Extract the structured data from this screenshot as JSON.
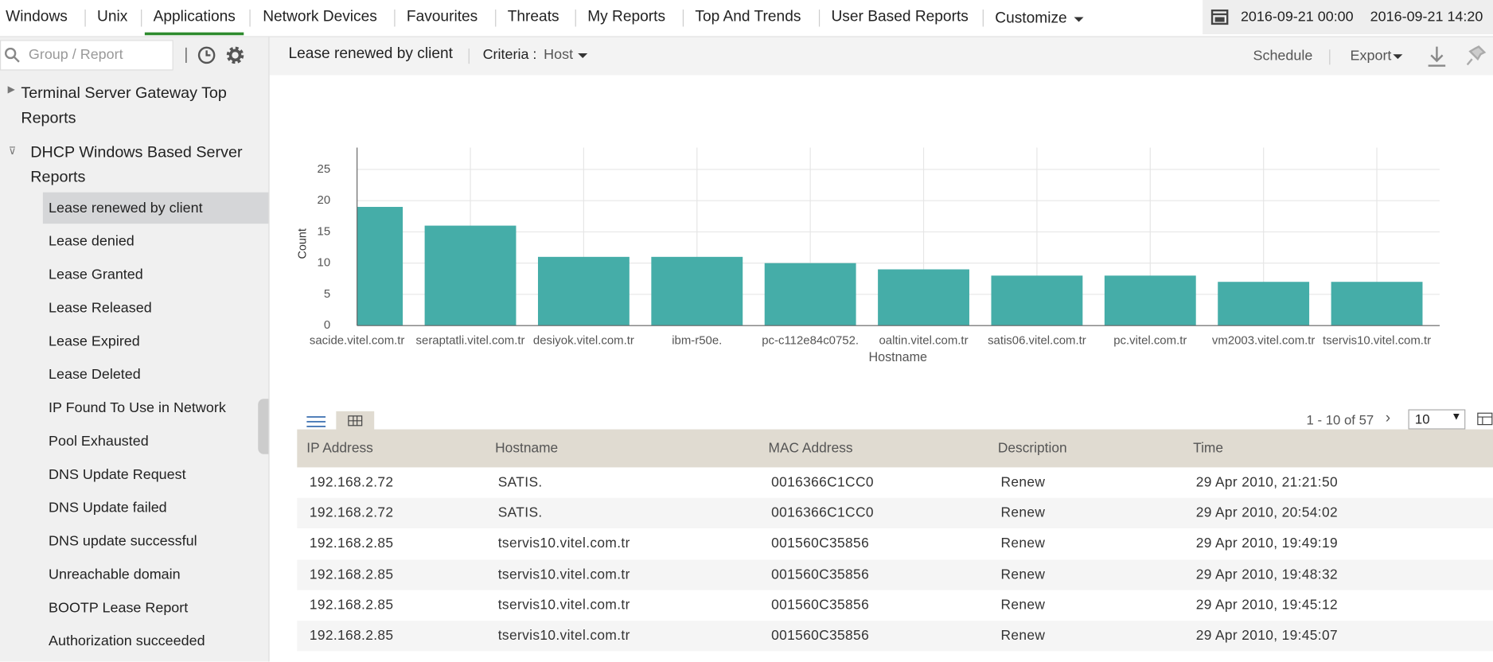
{
  "nav": {
    "items": [
      "Windows",
      "Unix",
      "Applications",
      "Network Devices",
      "Favourites",
      "Threats",
      "My Reports",
      "Top And Trends",
      "User Based Reports",
      "Customize"
    ],
    "active": 2,
    "date_from": "2016-09-21 00:00",
    "date_to": "2016-09-21 14:20"
  },
  "sidebar": {
    "search_placeholder": "Group / Report",
    "groups": [
      "Terminal Server Gateway Top Reports",
      "DHCP Windows Based Server Reports"
    ],
    "items": [
      "Lease renewed by client",
      "Lease denied",
      "Lease Granted",
      "Lease Released",
      "Lease Expired",
      "Lease Deleted",
      "IP Found To Use in Network",
      "Pool Exhausted",
      "DNS Update Request",
      "DNS Update failed",
      "DNS update successful",
      "Unreachable domain",
      "BOOTP Lease Report",
      "Authorization succeeded"
    ]
  },
  "toolbar": {
    "report": "Lease renewed by client",
    "criteria_label": "Criteria :",
    "criteria_value": "Host",
    "schedule": "Schedule",
    "export": "Export"
  },
  "chart_data": {
    "type": "bar",
    "x_label": "Hostname",
    "y_label": "Count",
    "color": "#45ada8",
    "grid": true,
    "categories": [
      "sacide.vitel.com.tr",
      "seraptatli.vitel.com.tr",
      "desiyok.vitel.com.tr",
      "ibm-r50e.",
      "pc-c112e84c0752.",
      "oaltin.vitel.com.tr",
      "satis06.vitel.com.tr",
      "pc.vitel.com.tr",
      "vm2003.vitel.com.tr",
      "tservis10.vitel.com.tr"
    ],
    "values": [
      19,
      16,
      11,
      11,
      10,
      9,
      8,
      8,
      7,
      7
    ],
    "ylim": [
      0,
      28.5
    ],
    "yticks": [
      0,
      5,
      10,
      15,
      20,
      25
    ]
  },
  "table": {
    "pager": "1 - 10 of 57",
    "page_size": "10",
    "columns": [
      "IP Address",
      "Hostname",
      "MAC Address",
      "Description",
      "Time"
    ],
    "rows": [
      [
        "192.168.2.72",
        "SATIS.",
        "0016366C1CC0",
        "Renew",
        "29 Apr 2010, 21:21:50"
      ],
      [
        "192.168.2.72",
        "SATIS.",
        "0016366C1CC0",
        "Renew",
        "29 Apr 2010, 20:54:02"
      ],
      [
        "192.168.2.85",
        "tservis10.vitel.com.tr",
        "001560C35856",
        "Renew",
        "29 Apr 2010, 19:49:19"
      ],
      [
        "192.168.2.85",
        "tservis10.vitel.com.tr",
        "001560C35856",
        "Renew",
        "29 Apr 2010, 19:48:32"
      ],
      [
        "192.168.2.85",
        "tservis10.vitel.com.tr",
        "001560C35856",
        "Renew",
        "29 Apr 2010, 19:45:12"
      ],
      [
        "192.168.2.85",
        "tservis10.vitel.com.tr",
        "001560C35856",
        "Renew",
        "29 Apr 2010, 19:45:07"
      ]
    ]
  }
}
